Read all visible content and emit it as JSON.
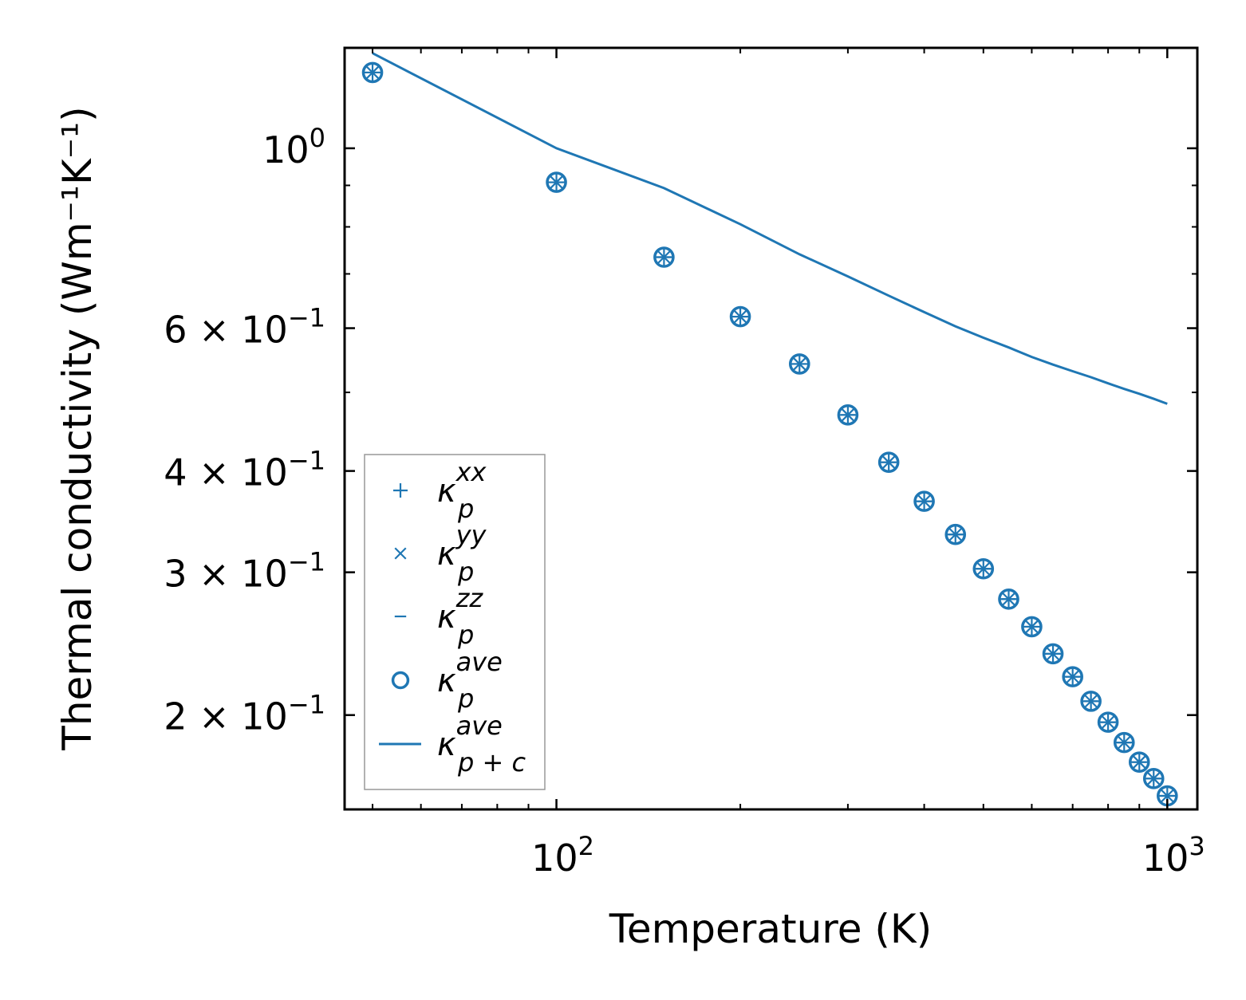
{
  "chart_data": {
    "type": "scatter",
    "title": "",
    "xlabel": "Temperature (K)",
    "ylabel": "Thermal conductivity (Wm⁻¹K⁻¹)",
    "x_scale": "log",
    "y_scale": "log",
    "xlim": [
      45,
      1120
    ],
    "ylim": [
      0.153,
      1.33
    ],
    "grid": false,
    "legend_position": "lower-left",
    "colors": {
      "series": "#1f77b4"
    },
    "x_ticks": [
      {
        "value": 100,
        "label": "10",
        "exp": "2"
      },
      {
        "value": 1000,
        "label": "10",
        "exp": "3"
      }
    ],
    "y_ticks": [
      {
        "value": 1.0,
        "label": "10",
        "exp": "0"
      },
      {
        "value": 0.6,
        "label": "6 × 10",
        "exp": "−1"
      },
      {
        "value": 0.4,
        "label": "4 × 10",
        "exp": "−1"
      },
      {
        "value": 0.3,
        "label": "3 × 10",
        "exp": "−1"
      },
      {
        "value": 0.2,
        "label": "2 × 10",
        "exp": "−1"
      }
    ],
    "x": [
      50,
      100,
      150,
      200,
      250,
      300,
      350,
      400,
      450,
      500,
      550,
      600,
      650,
      700,
      750,
      800,
      850,
      900,
      950,
      1000
    ],
    "series": [
      {
        "name": "κ_p^xx",
        "base": "κ",
        "sub": "p",
        "sup": "xx",
        "marker": "plus",
        "values": [
          1.24,
          0.908,
          0.734,
          0.62,
          0.542,
          0.469,
          0.41,
          0.367,
          0.334,
          0.303,
          0.278,
          0.257,
          0.238,
          0.223,
          0.208,
          0.196,
          0.185,
          0.175,
          0.167,
          0.159
        ]
      },
      {
        "name": "κ_p^yy",
        "base": "κ",
        "sub": "p",
        "sup": "yy",
        "marker": "x",
        "values": [
          1.24,
          0.908,
          0.734,
          0.62,
          0.542,
          0.469,
          0.41,
          0.367,
          0.334,
          0.303,
          0.278,
          0.257,
          0.238,
          0.223,
          0.208,
          0.196,
          0.185,
          0.175,
          0.167,
          0.159
        ]
      },
      {
        "name": "κ_p^zz",
        "base": "κ",
        "sub": "p",
        "sup": "zz",
        "marker": "hline",
        "values": [
          1.24,
          0.908,
          0.734,
          0.62,
          0.542,
          0.469,
          0.41,
          0.367,
          0.334,
          0.303,
          0.278,
          0.257,
          0.238,
          0.223,
          0.208,
          0.196,
          0.185,
          0.175,
          0.167,
          0.159
        ]
      },
      {
        "name": "κ_p^ave",
        "base": "κ",
        "sub": "p",
        "sup": "ave",
        "marker": "circle",
        "values": [
          1.24,
          0.908,
          0.734,
          0.62,
          0.542,
          0.469,
          0.41,
          0.367,
          0.334,
          0.303,
          0.278,
          0.257,
          0.238,
          0.223,
          0.208,
          0.196,
          0.185,
          0.175,
          0.167,
          0.159
        ]
      },
      {
        "name": "κ_p+c^ave",
        "base": "κ",
        "sub": "p + c",
        "sup": "ave",
        "marker": "line",
        "values": [
          1.31,
          1.0,
          0.893,
          0.806,
          0.74,
          0.695,
          0.658,
          0.628,
          0.603,
          0.584,
          0.568,
          0.553,
          0.541,
          0.531,
          0.522,
          0.513,
          0.505,
          0.498,
          0.491,
          0.484
        ]
      }
    ]
  }
}
